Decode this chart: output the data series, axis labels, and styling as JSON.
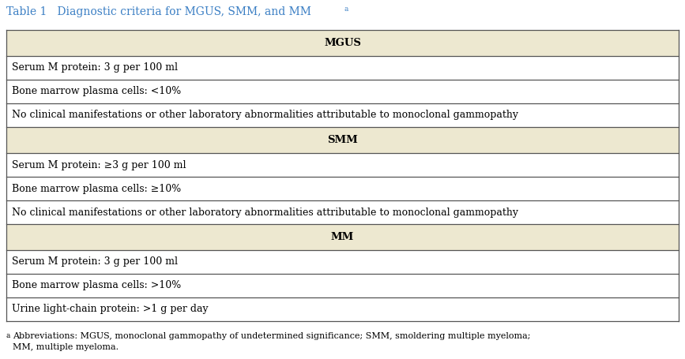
{
  "title": "Table 1   Diagnostic criteria for MGUS, SMM, and MM",
  "title_superscript": "a",
  "title_color": "#3B7FC4",
  "bg_color": "#FFFFFF",
  "header_bg": "#EDE8D0",
  "header_text_color": "#000000",
  "row_text_color": "#000000",
  "border_color": "#555555",
  "sections": [
    {
      "header": "MGUS",
      "rows": [
        "Serum M protein: 3 g per 100 ml",
        "Bone marrow plasma cells: <10%",
        "No clinical manifestations or other laboratory abnormalities attributable to monoclonal gammopathy"
      ]
    },
    {
      "header": "SMM",
      "rows": [
        "Serum M protein: ≥3 g per 100 ml",
        "Bone marrow plasma cells: ≥10%",
        "No clinical manifestations or other laboratory abnormalities attributable to monoclonal gammopathy"
      ]
    },
    {
      "header": "MM",
      "rows": [
        "Serum M protein: 3 g per 100 ml",
        "Bone marrow plasma cells: >10%",
        "Urine light-chain protein: >1 g per day"
      ]
    }
  ],
  "footnote_superscript": "a",
  "footnote_text": "Abbreviations: MGUS, monoclonal gammopathy of undetermined significance; SMM, smoldering multiple myeloma;\nMM, multiple myeloma.",
  "title_fontsize": 10.0,
  "header_fontsize": 9.5,
  "row_fontsize": 9.0,
  "footnote_fontsize": 8.0,
  "fig_width": 8.67,
  "fig_height": 4.55,
  "dpi": 100
}
